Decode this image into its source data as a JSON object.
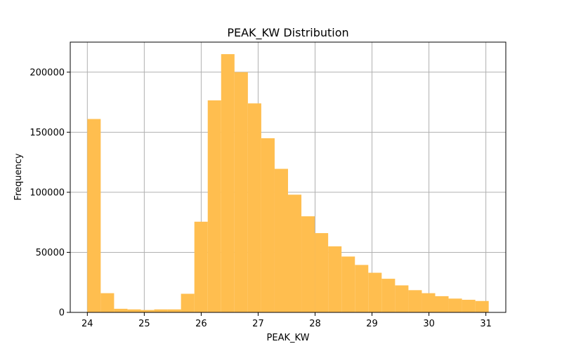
{
  "chart_data": {
    "type": "bar",
    "title": "PEAK_KW Distribution",
    "xlabel": "PEAK_KW",
    "ylabel": "Frequency",
    "bar_color": "#ffbe4f",
    "grid": true,
    "xlim": [
      23.7,
      31.35
    ],
    "ylim": [
      0,
      225000
    ],
    "xticks": [
      "24",
      "25",
      "26",
      "27",
      "28",
      "29",
      "30",
      "31"
    ],
    "yticks": [
      "0",
      "50000",
      "100000",
      "150000",
      "200000"
    ],
    "bin_edges": [
      24.0,
      24.235,
      24.47,
      24.705,
      24.94,
      25.175,
      25.41,
      25.645,
      25.88,
      26.115,
      26.35,
      26.585,
      26.82,
      27.055,
      27.29,
      27.525,
      27.76,
      27.995,
      28.23,
      28.465,
      28.7,
      28.935,
      29.17,
      29.405,
      29.64,
      29.875,
      30.11,
      30.345,
      30.58,
      30.815,
      31.05
    ],
    "values": [
      161000,
      16000,
      3000,
      2500,
      2000,
      2500,
      2500,
      15500,
      75500,
      176500,
      215000,
      200000,
      174000,
      145000,
      119500,
      98000,
      80000,
      66000,
      55000,
      46500,
      39500,
      33000,
      28000,
      22500,
      18500,
      16000,
      13500,
      11500,
      10500,
      9500
    ]
  }
}
